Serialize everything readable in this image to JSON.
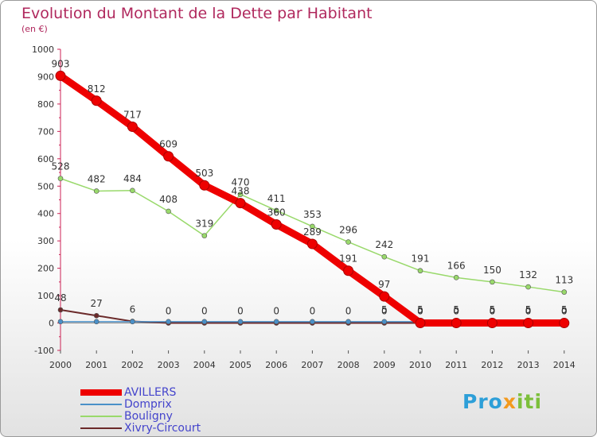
{
  "chart_data": {
    "type": "line",
    "title": "Evolution du Montant de la Dette par Habitant",
    "subtitle": "(en €)",
    "xlabel": "",
    "ylabel": "",
    "x": [
      "2000",
      "2001",
      "2002",
      "2003",
      "2004",
      "2005",
      "2006",
      "2007",
      "2008",
      "2009",
      "2010",
      "2011",
      "2012",
      "2013",
      "2014"
    ],
    "ylim": [
      -100,
      1000
    ],
    "yticks": [
      -100,
      0,
      100,
      200,
      300,
      400,
      500,
      600,
      700,
      800,
      900,
      1000
    ],
    "grid": false,
    "legend_position": "bottom-left",
    "series": [
      {
        "name": "Xivry-Circourt",
        "color": "#6b2a2a",
        "width": 2,
        "values": [
          48,
          27,
          6,
          0,
          0,
          0,
          0,
          0,
          0,
          0,
          0,
          0,
          0,
          0,
          0
        ],
        "labels": [
          "48",
          "27",
          "6",
          "0",
          "0",
          "0",
          "0",
          "0",
          "0",
          "0",
          "0",
          "0",
          "0",
          "0",
          "0"
        ]
      },
      {
        "name": "Domprix",
        "color": "#4a90c8",
        "width": 1.5,
        "values": [
          5,
          5,
          5,
          5,
          5,
          5,
          5,
          5,
          5,
          5,
          5,
          5,
          5,
          5,
          5
        ],
        "labels": [
          "",
          "",
          "",
          "",
          "",
          "",
          "",
          "",
          "",
          "5",
          "5",
          "5",
          "5",
          "5",
          "5"
        ]
      },
      {
        "name": "Bouligny",
        "color": "#99d96b",
        "width": 1.5,
        "values": [
          528,
          482,
          484,
          408,
          319,
          470,
          411,
          353,
          296,
          242,
          191,
          166,
          150,
          132,
          113
        ],
        "labels": [
          "528",
          "482",
          "484",
          "408",
          "319",
          "470",
          "411",
          "353",
          "296",
          "242",
          "191",
          "166",
          "150",
          "132",
          "113"
        ]
      },
      {
        "name": "AVILLERS",
        "color": "#ee0000",
        "width": 9,
        "values": [
          903,
          812,
          717,
          609,
          503,
          438,
          360,
          289,
          191,
          97,
          0,
          0,
          0,
          0,
          0
        ],
        "labels": [
          "903",
          "812",
          "717",
          "609",
          "503",
          "438",
          "360",
          "289",
          "191",
          "97",
          "0",
          "0",
          "0",
          "0",
          "0"
        ]
      }
    ],
    "legend_order": [
      "AVILLERS",
      "Domprix",
      "Bouligny",
      "Xivry-Circourt"
    ]
  },
  "logo": {
    "part1": "Pro",
    "part2": "x",
    "part3": "iti"
  }
}
